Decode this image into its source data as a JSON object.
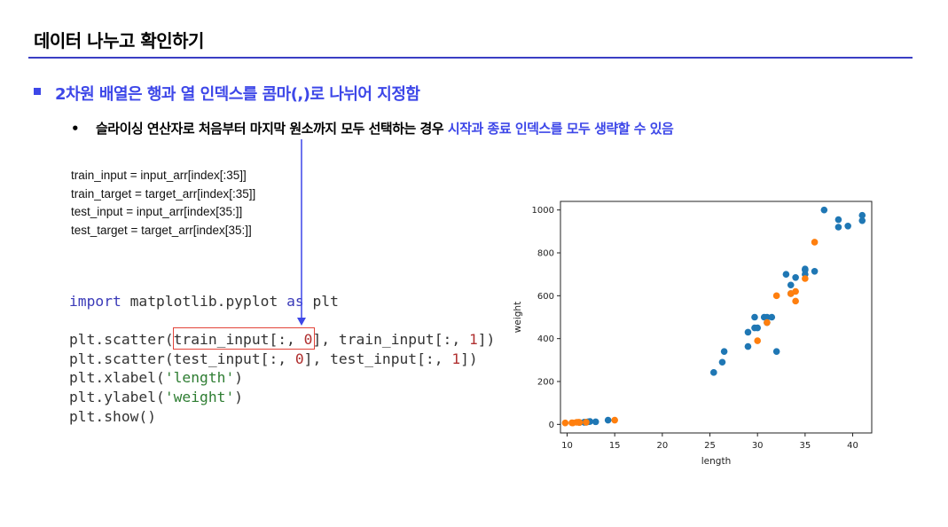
{
  "slide": {
    "title": "데이터 나누고 확인하기",
    "bullet1": "2차원 배열은 행과 열 인덱스를 콤마(,)로 나뉘어 지정함",
    "bullet2_mark": "•",
    "bullet2_plain": "슬라이싱 연산자로 처음부터 마지막 원소까지 모두 선택하는 경우 ",
    "bullet2_highlight": "시작과 종료  인덱스를 모두 생략할 수 있음",
    "code_small": [
      "train_input = input_arr[index[:35]]",
      "train_target = target_arr[index[:35]]",
      "test_input = input_arr[index[35:]]",
      "test_target = target_arr[index[35:]]"
    ],
    "code_big": {
      "line1_kw1": "import",
      "line1_mid": " matplotlib.pyplot ",
      "line1_kw2": "as",
      "line1_end": " plt",
      "line3_a": "plt.scatter(train_input[:, ",
      "line3_n1": "0",
      "line3_b": "], train_input[:, ",
      "line3_n2": "1",
      "line3_c": "])",
      "line4_a": "plt.scatter(test_input[:, ",
      "line4_n1": "0",
      "line4_b": "], test_input[:, ",
      "line4_n2": "1",
      "line4_c": "])",
      "line5_a": "plt.xlabel(",
      "line5_s": "'length'",
      "line5_c": ")",
      "line6_a": "plt.ylabel(",
      "line6_s": "'weight'",
      "line6_c": ")",
      "line7": "plt.show()"
    },
    "colors": {
      "accent": "#3d47e8",
      "highlight_box": "#e2443a",
      "train": "#1f77b4",
      "test": "#ff7f0e"
    }
  },
  "chart_data": {
    "type": "scatter",
    "title": "",
    "xlabel": "length",
    "ylabel": "weight",
    "xlim": [
      9.3,
      42
    ],
    "ylim": [
      -40,
      1040
    ],
    "xticks": [
      "10",
      "15",
      "20",
      "25",
      "30",
      "35",
      "40"
    ],
    "yticks": [
      "0",
      "200",
      "400",
      "600",
      "800",
      "1000"
    ],
    "grid": false,
    "series": [
      {
        "color": "#1f77b4",
        "points": [
          [
            25.4,
            242
          ],
          [
            26.3,
            290
          ],
          [
            26.5,
            340
          ],
          [
            29.0,
            363
          ],
          [
            29.0,
            430
          ],
          [
            29.7,
            450
          ],
          [
            29.7,
            500
          ],
          [
            30.0,
            450
          ],
          [
            30.7,
            500
          ],
          [
            31.0,
            475
          ],
          [
            31.0,
            500
          ],
          [
            31.5,
            500
          ],
          [
            32.0,
            340
          ],
          [
            33.0,
            700
          ],
          [
            33.5,
            650
          ],
          [
            33.5,
            610
          ],
          [
            34.0,
            685
          ],
          [
            35.0,
            700
          ],
          [
            35.0,
            725
          ],
          [
            35.0,
            720
          ],
          [
            36.0,
            714
          ],
          [
            37.0,
            1000
          ],
          [
            38.5,
            955
          ],
          [
            38.5,
            920
          ],
          [
            39.5,
            925
          ],
          [
            41.0,
            975
          ],
          [
            41.0,
            950
          ],
          [
            11.8,
            10.0
          ],
          [
            12.0,
            9.8
          ],
          [
            12.2,
            12.2
          ],
          [
            12.4,
            13.4
          ],
          [
            13.0,
            12.2
          ],
          [
            14.3,
            19.7
          ],
          [
            11.3,
            8.7
          ],
          [
            11.8,
            9.9
          ]
        ]
      },
      {
        "color": "#ff7f0e",
        "points": [
          [
            30.0,
            390
          ],
          [
            31.0,
            475
          ],
          [
            32.0,
            600
          ],
          [
            33.5,
            610
          ],
          [
            34.0,
            575
          ],
          [
            34.0,
            620
          ],
          [
            35.0,
            680
          ],
          [
            36.0,
            850
          ],
          [
            9.8,
            6.7
          ],
          [
            10.5,
            7.5
          ],
          [
            10.6,
            7.0
          ],
          [
            11.0,
            9.7
          ],
          [
            11.2,
            9.8
          ],
          [
            11.3,
            8.7
          ],
          [
            12.0,
            9.9
          ],
          [
            15.0,
            19.9
          ]
        ]
      }
    ]
  }
}
